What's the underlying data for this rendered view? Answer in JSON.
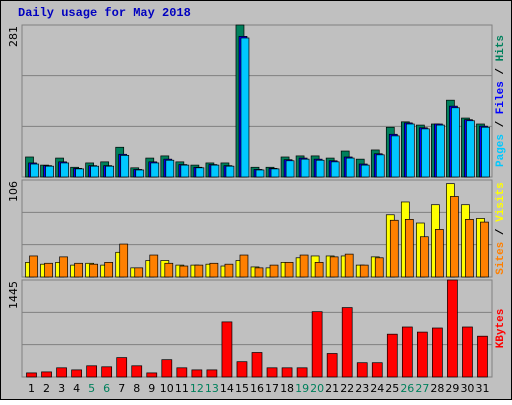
{
  "chart_data": [
    {
      "type": "bar",
      "title": "Daily usage for May 2018",
      "ylim": [
        0,
        281
      ],
      "yticks": [
        281
      ],
      "legend_separator": " / ",
      "series": [
        {
          "name": "Pages",
          "color": "#00c8ff",
          "values": [
            24,
            20,
            26,
            15,
            20,
            20,
            40,
            13,
            26,
            31,
            22,
            17,
            22,
            20,
            257,
            13,
            15,
            30,
            33,
            31,
            28,
            35,
            22,
            41,
            76,
            98,
            89,
            96,
            128,
            104,
            92
          ]
        },
        {
          "name": "Files",
          "color": "#0000ff",
          "values": [
            26,
            21,
            28,
            16,
            21,
            21,
            42,
            14,
            28,
            33,
            23,
            18,
            23,
            21,
            260,
            14,
            16,
            32,
            35,
            33,
            30,
            37,
            24,
            43,
            79,
            100,
            91,
            98,
            131,
            106,
            94
          ]
        },
        {
          "name": "Hits",
          "color": "#00805c",
          "values": [
            37,
            22,
            35,
            18,
            26,
            28,
            55,
            17,
            35,
            39,
            28,
            22,
            26,
            26,
            281,
            18,
            18,
            37,
            39,
            39,
            35,
            48,
            33,
            50,
            92,
            102,
            96,
            98,
            142,
            109,
            98
          ]
        }
      ]
    },
    {
      "type": "bar",
      "ylim": [
        0,
        106
      ],
      "yticks": [
        106
      ],
      "legend_separator": " / ",
      "series": [
        {
          "name": "Sites",
          "color": "#ff8000",
          "values": [
            23,
            15,
            22,
            15,
            14,
            16,
            36,
            10,
            24,
            15,
            12,
            13,
            15,
            14,
            24,
            10,
            13,
            16,
            24,
            16,
            22,
            25,
            13,
            21,
            62,
            63,
            44,
            52,
            88,
            63,
            60
          ]
        },
        {
          "name": "Visits",
          "color": "#ffff00",
          "values": [
            16,
            14,
            16,
            13,
            15,
            13,
            27,
            10,
            18,
            18,
            13,
            13,
            14,
            12,
            18,
            11,
            10,
            16,
            21,
            23,
            23,
            23,
            13,
            22,
            68,
            82,
            59,
            79,
            102,
            79,
            64
          ]
        }
      ]
    },
    {
      "type": "bar",
      "ylim": [
        0,
        1445
      ],
      "yticks": [
        1445
      ],
      "series": [
        {
          "name": "KBytes",
          "color": "#ff0000",
          "values": [
            61,
            76,
            137,
            106,
            167,
            152,
            289,
            167,
            61,
            258,
            137,
            106,
            106,
            821,
            228,
            365,
            137,
            137,
            137,
            973,
            350,
            1034,
            213,
            213,
            638,
            745,
            669,
            730,
            1445,
            745,
            608
          ]
        }
      ],
      "categories": [
        "1",
        "2",
        "3",
        "4",
        "5",
        "6",
        "7",
        "8",
        "9",
        "10",
        "11",
        "12",
        "13",
        "14",
        "15",
        "16",
        "17",
        "18",
        "19",
        "20",
        "21",
        "22",
        "23",
        "24",
        "25",
        "26",
        "27",
        "28",
        "29",
        "30",
        "31"
      ],
      "category_colors": [
        "#000000",
        "#000000",
        "#000000",
        "#000000",
        "#00805c",
        "#00805c",
        "#000000",
        "#000000",
        "#000000",
        "#000000",
        "#000000",
        "#00805c",
        "#00805c",
        "#000000",
        "#000000",
        "#000000",
        "#000000",
        "#000000",
        "#00805c",
        "#00805c",
        "#000000",
        "#000000",
        "#000000",
        "#000000",
        "#000000",
        "#00805c",
        "#00805c",
        "#000000",
        "#000000",
        "#000000",
        "#000000"
      ]
    }
  ]
}
